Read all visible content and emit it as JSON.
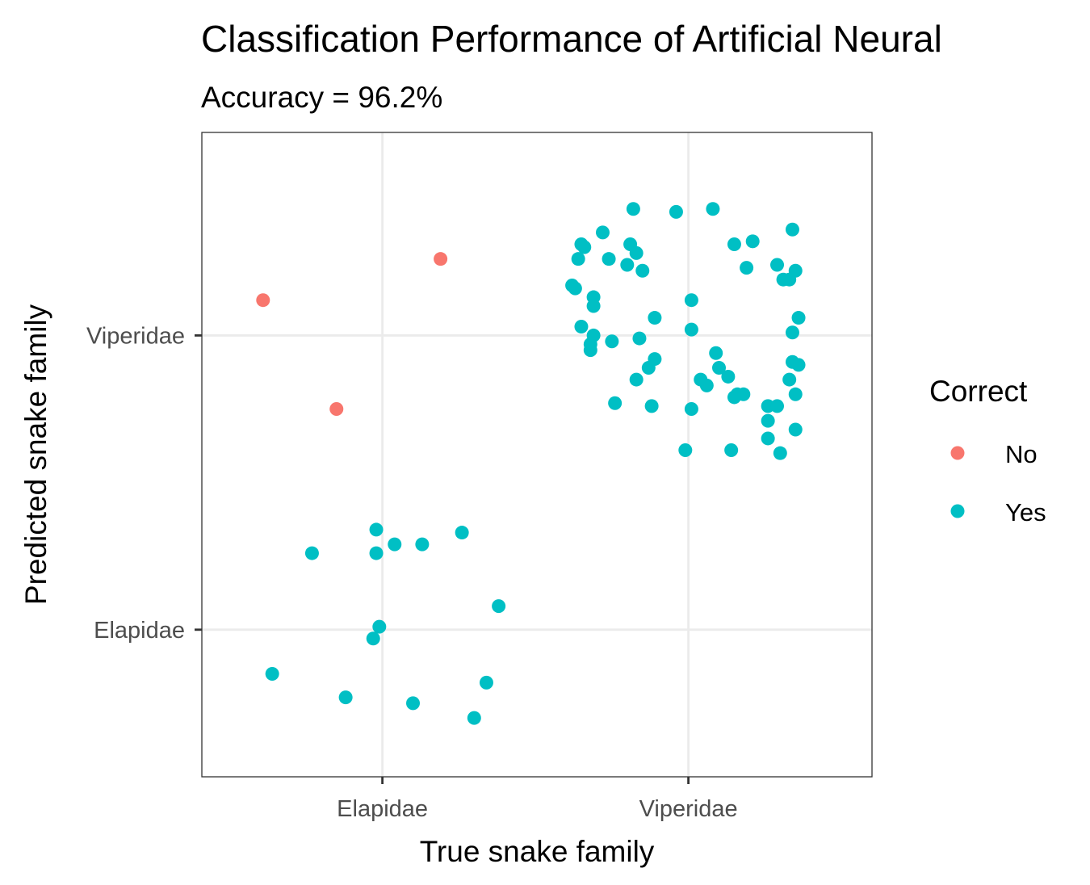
{
  "chart_data": {
    "type": "scatter",
    "title": "Classification Performance of Artificial Neural",
    "subtitle": "Accuracy = 96.2%",
    "xlabel": "True snake family",
    "ylabel": "Predicted snake family",
    "categories": [
      "Elapidae",
      "Viperidae"
    ],
    "x_tick_labels": [
      "Elapidae",
      "Viperidae"
    ],
    "y_tick_labels": [
      "Elapidae",
      "Viperidae"
    ],
    "xlim": [
      0.41,
      2.6
    ],
    "ylim": [
      0.5,
      2.69
    ],
    "grid": true,
    "legend": {
      "title": "Correct",
      "position": "right",
      "entries": [
        {
          "label": "No",
          "color": "#F8766D"
        },
        {
          "label": "Yes",
          "color": "#00BFC4"
        }
      ]
    },
    "series": [
      {
        "name": "No",
        "color": "#F8766D",
        "points": [
          {
            "x": 0.61,
            "y": 2.12
          },
          {
            "x": 1.19,
            "y": 2.26
          },
          {
            "x": 0.85,
            "y": 1.75
          }
        ]
      },
      {
        "name": "Yes",
        "color": "#00BFC4",
        "points": [
          {
            "x": 0.98,
            "y": 1.34
          },
          {
            "x": 0.77,
            "y": 1.26
          },
          {
            "x": 0.98,
            "y": 1.26
          },
          {
            "x": 1.04,
            "y": 1.29
          },
          {
            "x": 1.13,
            "y": 1.29
          },
          {
            "x": 1.26,
            "y": 1.33
          },
          {
            "x": 1.38,
            "y": 1.08
          },
          {
            "x": 0.99,
            "y": 1.01
          },
          {
            "x": 0.97,
            "y": 0.97
          },
          {
            "x": 0.64,
            "y": 0.85
          },
          {
            "x": 0.88,
            "y": 0.77
          },
          {
            "x": 1.1,
            "y": 0.75
          },
          {
            "x": 1.34,
            "y": 0.82
          },
          {
            "x": 1.3,
            "y": 0.7
          },
          {
            "x": 1.82,
            "y": 2.43
          },
          {
            "x": 1.96,
            "y": 2.42
          },
          {
            "x": 2.08,
            "y": 2.43
          },
          {
            "x": 1.72,
            "y": 2.35
          },
          {
            "x": 1.65,
            "y": 2.31
          },
          {
            "x": 1.66,
            "y": 2.3
          },
          {
            "x": 1.81,
            "y": 2.31
          },
          {
            "x": 2.15,
            "y": 2.31
          },
          {
            "x": 2.21,
            "y": 2.32
          },
          {
            "x": 2.34,
            "y": 2.36
          },
          {
            "x": 1.64,
            "y": 2.26
          },
          {
            "x": 1.74,
            "y": 2.26
          },
          {
            "x": 1.83,
            "y": 2.28
          },
          {
            "x": 1.8,
            "y": 2.24
          },
          {
            "x": 1.85,
            "y": 2.22
          },
          {
            "x": 2.19,
            "y": 2.23
          },
          {
            "x": 2.29,
            "y": 2.24
          },
          {
            "x": 2.35,
            "y": 2.22
          },
          {
            "x": 2.31,
            "y": 2.19
          },
          {
            "x": 2.33,
            "y": 2.19
          },
          {
            "x": 1.62,
            "y": 2.17
          },
          {
            "x": 1.63,
            "y": 2.16
          },
          {
            "x": 1.69,
            "y": 2.13
          },
          {
            "x": 2.01,
            "y": 2.12
          },
          {
            "x": 1.69,
            "y": 2.1
          },
          {
            "x": 1.89,
            "y": 2.06
          },
          {
            "x": 2.36,
            "y": 2.06
          },
          {
            "x": 1.65,
            "y": 2.03
          },
          {
            "x": 2.01,
            "y": 2.02
          },
          {
            "x": 2.34,
            "y": 2.01
          },
          {
            "x": 1.69,
            "y": 2.0
          },
          {
            "x": 1.84,
            "y": 1.99
          },
          {
            "x": 1.75,
            "y": 1.98
          },
          {
            "x": 1.68,
            "y": 1.97
          },
          {
            "x": 1.68,
            "y": 1.95
          },
          {
            "x": 2.09,
            "y": 1.94
          },
          {
            "x": 1.89,
            "y": 1.92
          },
          {
            "x": 1.87,
            "y": 1.89
          },
          {
            "x": 2.34,
            "y": 1.91
          },
          {
            "x": 2.36,
            "y": 1.9
          },
          {
            "x": 2.1,
            "y": 1.89
          },
          {
            "x": 2.13,
            "y": 1.86
          },
          {
            "x": 1.83,
            "y": 1.85
          },
          {
            "x": 2.04,
            "y": 1.85
          },
          {
            "x": 2.06,
            "y": 1.83
          },
          {
            "x": 2.33,
            "y": 1.85
          },
          {
            "x": 2.16,
            "y": 1.8
          },
          {
            "x": 2.18,
            "y": 1.8
          },
          {
            "x": 2.15,
            "y": 1.79
          },
          {
            "x": 2.35,
            "y": 1.8
          },
          {
            "x": 1.76,
            "y": 1.77
          },
          {
            "x": 1.88,
            "y": 1.76
          },
          {
            "x": 2.01,
            "y": 1.75
          },
          {
            "x": 2.26,
            "y": 1.76
          },
          {
            "x": 2.29,
            "y": 1.76
          },
          {
            "x": 2.26,
            "y": 1.71
          },
          {
            "x": 2.35,
            "y": 1.68
          },
          {
            "x": 2.26,
            "y": 1.65
          },
          {
            "x": 1.99,
            "y": 1.61
          },
          {
            "x": 2.14,
            "y": 1.61
          },
          {
            "x": 2.3,
            "y": 1.6
          }
        ]
      }
    ]
  }
}
